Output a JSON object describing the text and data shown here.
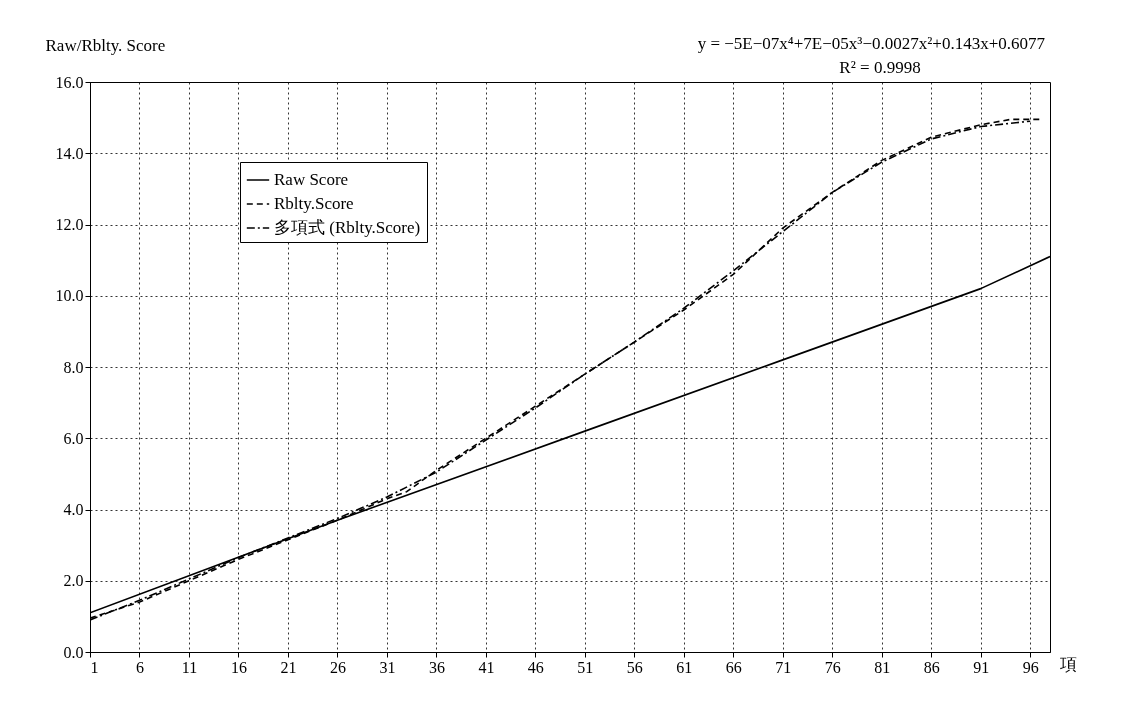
{
  "chart_data": {
    "type": "line",
    "ylabel": "Raw/Rblty. Score",
    "xlabel": "項",
    "annotations": [
      "y = −5E−07x⁴+7E−05x³−0.0027x²+0.143x+0.6077",
      "R² = 0.9998"
    ],
    "xlim": [
      1,
      98
    ],
    "xticks": [
      1,
      6,
      11,
      16,
      21,
      26,
      31,
      36,
      41,
      46,
      51,
      56,
      61,
      66,
      71,
      76,
      81,
      86,
      91,
      96
    ],
    "ylim": [
      0,
      16
    ],
    "yticks": [
      {
        "value": 0,
        "label": "0.0"
      },
      {
        "value": 2,
        "label": "2.0"
      },
      {
        "value": 4,
        "label": "4.0"
      },
      {
        "value": 6,
        "label": "6.0"
      },
      {
        "value": 8,
        "label": "8.0"
      },
      {
        "value": 10,
        "label": "10.0"
      },
      {
        "value": 12,
        "label": "12.0"
      },
      {
        "value": 14,
        "label": "14.0"
      },
      {
        "value": 16,
        "label": "16.0"
      }
    ],
    "grid": true,
    "legend": "top left",
    "marker": "none",
    "series": [
      {
        "name": "Raw Score",
        "color": "#000000",
        "line_style": "solid",
        "x": [
          1,
          26,
          51,
          71,
          91,
          98
        ],
        "values": [
          1.1,
          3.7,
          6.2,
          8.2,
          10.2,
          11.1
        ]
      },
      {
        "name": "Rblty.Score",
        "color": "#000000",
        "line_style": "dashed",
        "x": [
          1,
          6,
          11,
          16,
          21,
          26,
          31,
          33,
          36,
          41,
          46,
          51,
          56,
          61,
          66,
          71,
          76,
          81,
          86,
          91,
          94,
          97
        ],
        "values": [
          0.95,
          1.4,
          2.0,
          2.6,
          3.15,
          3.7,
          4.3,
          4.5,
          5.1,
          6.0,
          6.9,
          7.8,
          8.7,
          9.6,
          10.6,
          11.9,
          12.9,
          13.8,
          14.45,
          14.8,
          14.95,
          14.95
        ]
      },
      {
        "name": "多項式 (Rblty.Score)",
        "color": "#000000",
        "line_style": "dashdot",
        "x": [
          1,
          6,
          11,
          16,
          21,
          26,
          31,
          36,
          41,
          46,
          51,
          56,
          61,
          66,
          71,
          76,
          81,
          86,
          91,
          96
        ],
        "values": [
          0.9,
          1.45,
          2.05,
          2.65,
          3.2,
          3.75,
          4.35,
          5.05,
          5.95,
          6.85,
          7.8,
          8.7,
          9.65,
          10.7,
          11.8,
          12.9,
          13.75,
          14.4,
          14.75,
          14.9
        ]
      }
    ]
  }
}
